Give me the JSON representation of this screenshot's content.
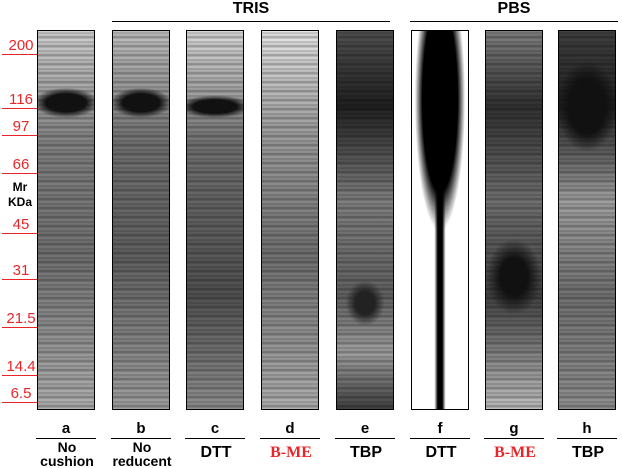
{
  "markers": [
    "200",
    "116",
    "97",
    "66",
    "45",
    "31",
    "21.5",
    "14.4",
    "6.5"
  ],
  "mr_label": [
    "Mr",
    "KDa"
  ],
  "groups": [
    {
      "label": "TRIS"
    },
    {
      "label": "PBS"
    }
  ],
  "lanes": [
    {
      "letter": "a",
      "label": [
        "No",
        "cushion"
      ]
    },
    {
      "letter": "b",
      "label": [
        "No",
        "reducent"
      ]
    },
    {
      "letter": "c",
      "label": [
        "DTT"
      ]
    },
    {
      "letter": "d",
      "label": [
        "B-ME"
      ]
    },
    {
      "letter": "e",
      "label": [
        "TBP"
      ]
    },
    {
      "letter": "f",
      "label": [
        "DTT"
      ]
    },
    {
      "letter": "g",
      "label": [
        "B-ME"
      ]
    },
    {
      "letter": "h",
      "label": [
        "TBP"
      ]
    }
  ]
}
